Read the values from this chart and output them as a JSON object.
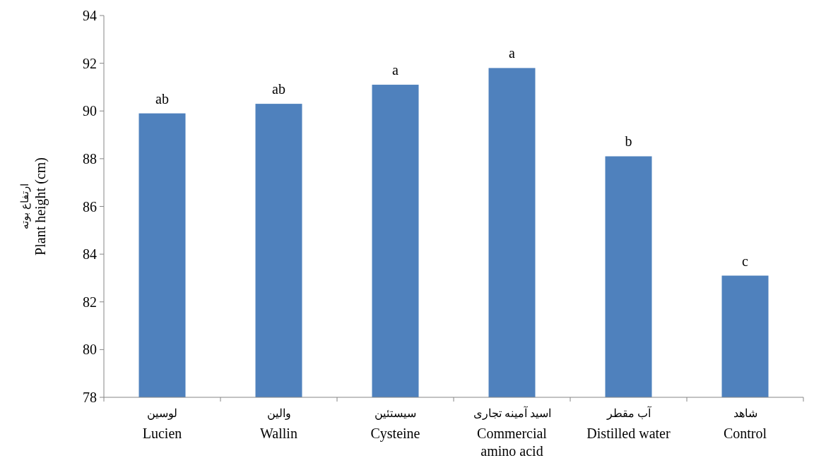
{
  "chart_data": {
    "type": "bar",
    "ylabel": "ارتفاع بوته\nPlant height (cm)",
    "categories": [
      "لوسین\nLucien",
      "والین\nWallin",
      "سیستئین\nCysteine",
      "اسید آمینه تجاری\nCommercial\namino acid",
      "آب مقطر\nDistilled water",
      "شاهد\nControl"
    ],
    "values": [
      89.9,
      90.3,
      91.1,
      91.8,
      88.1,
      83.1
    ],
    "color": "#4f81bd",
    "ylim": [
      78,
      94
    ],
    "yticks": [
      78,
      80,
      82,
      84,
      86,
      88,
      90,
      92,
      94
    ],
    "grid": false,
    "annotations": [
      {
        "text": "ab",
        "x": "لوسین\nLucien",
        "y": 89.9
      },
      {
        "text": "ab",
        "x": "والین\nWallin",
        "y": 90.3
      },
      {
        "text": "a",
        "x": "سیستئین\nCysteine",
        "y": 91.1
      },
      {
        "text": "a",
        "x": "اسید آمینه تجاری\nCommercial\namino acid",
        "y": 91.8
      },
      {
        "text": "b",
        "x": "آب مقطر\nDistilled water",
        "y": 88.1
      },
      {
        "text": "c",
        "x": "شاهد\nControl",
        "y": 83.1
      }
    ]
  }
}
